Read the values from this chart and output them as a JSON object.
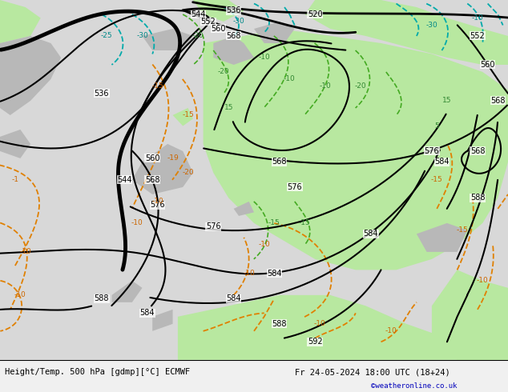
{
  "title_left": "Height/Temp. 500 hPa [gdmp][°C] ECMWF",
  "title_right": "Fr 24-05-2024 18:00 UTC (18+24)",
  "watermark": "©weatheronline.co.uk",
  "fig_width": 6.34,
  "fig_height": 4.9,
  "dpi": 100,
  "bg_color": "#d8d8d8",
  "green_color": "#b8e8a0",
  "gray_color": "#b8b8b8",
  "white_color": "#e8e8e8"
}
